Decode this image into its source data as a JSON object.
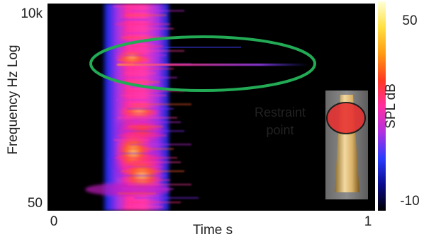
{
  "chart_data": {
    "type": "heatmap",
    "title": "",
    "xlabel": "Time  s",
    "ylabel": "Frequency  Hz  Log",
    "x_ticks": [
      "0",
      "1"
    ],
    "y_ticks": [
      "10k",
      "50"
    ],
    "xlim": [
      0,
      1
    ],
    "ylim": [
      50,
      10000
    ],
    "y_scale": "log",
    "grid": false,
    "colorbar": {
      "label": "SPL  dB",
      "ticks": [
        "50",
        "-10"
      ],
      "range": [
        -10,
        50
      ],
      "colormap": [
        "#000000",
        "#0a0a8c",
        "#2a3cff",
        "#b030e0",
        "#ff2fa0",
        "#ff3a20",
        "#ff9a10",
        "#ffe040",
        "#ffffd8"
      ]
    },
    "features": [
      {
        "kind": "broadband_event",
        "t_start": 0.16,
        "t_end": 0.37,
        "f_min": 50,
        "f_max": 10000,
        "peak_spl": 40
      },
      {
        "kind": "tonal_line",
        "t_start": 0.22,
        "t_end": 0.83,
        "freq": 3000,
        "peak_spl": 20
      }
    ],
    "annotations": [
      {
        "kind": "ellipse",
        "color": "#22aa55"
      },
      {
        "kind": "inset",
        "text": "Restraint\npoint",
        "marker_color": "#e83030"
      }
    ]
  }
}
